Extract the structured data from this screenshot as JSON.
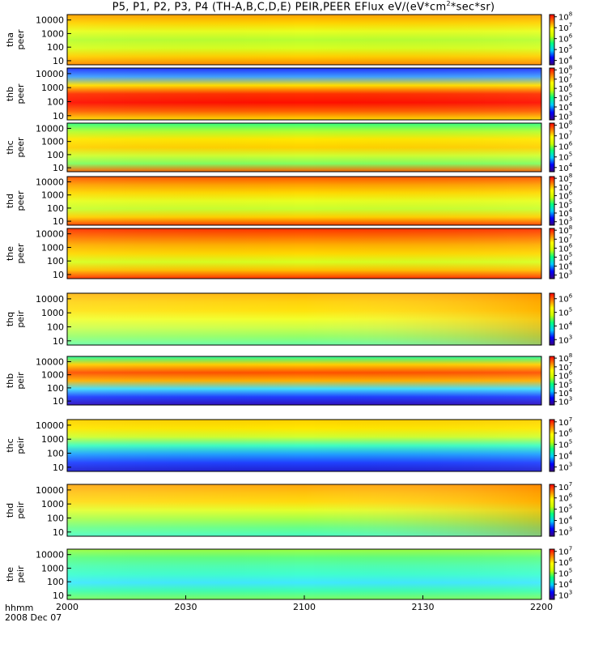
{
  "title": {
    "prefix": "P5, P1, P2, P3, P4 (TH-A,B,C,D,E) PEIR,PEER EFlux eV/(eV*cm",
    "sup": "2",
    "suffix": "*sec*sr)"
  },
  "footer": {
    "time_label": "hhmm",
    "date_label": "2008 Dec 07"
  },
  "colors": {
    "background": "#ffffff",
    "frame": "#000000",
    "colormap": [
      "#3a0080",
      "#0000ff",
      "#00c8ff",
      "#00ff80",
      "#c8ff00",
      "#ffff00",
      "#ff8000",
      "#ff0000"
    ]
  },
  "chart_data": {
    "type": "heatmap",
    "title": "P5, P1, P2, P3, P4 (TH-A,B,C,D,E) PEIR,PEER EFlux eV/(eV*cm2*sec*sr)",
    "x_axis": {
      "ticks": [
        "2000",
        "2030",
        "2100",
        "2130",
        "2200"
      ],
      "range": [
        "2000",
        "2200"
      ],
      "date": "2008 Dec 07"
    },
    "y_axis": {
      "scale": "log",
      "ticks": [
        "10",
        "100",
        "1000",
        "10000"
      ],
      "range": [
        5,
        25000
      ]
    },
    "panels": [
      {
        "label": [
          "tha",
          "peer"
        ],
        "cbar": {
          "min_exp": 3.6,
          "max_exp": 8.2,
          "ticks": [
            4,
            5,
            6,
            7,
            8
          ]
        }
      },
      {
        "label": [
          "thb",
          "peer"
        ],
        "cbar": {
          "min_exp": 2.6,
          "max_exp": 8.2,
          "ticks": [
            3,
            4,
            5,
            6,
            7,
            8
          ]
        }
      },
      {
        "label": [
          "thc",
          "peer"
        ],
        "cbar": {
          "min_exp": 3.6,
          "max_exp": 8.2,
          "ticks": [
            4,
            5,
            6,
            7,
            8
          ]
        }
      },
      {
        "label": [
          "thd",
          "peer"
        ],
        "cbar": {
          "min_exp": 2.6,
          "max_exp": 8.2,
          "ticks": [
            3,
            4,
            5,
            6,
            7,
            8
          ]
        }
      },
      {
        "label": [
          "the",
          "peer"
        ],
        "cbar": {
          "min_exp": 2.6,
          "max_exp": 8.2,
          "ticks": [
            3,
            4,
            5,
            6,
            7,
            8
          ]
        }
      },
      {
        "label": [
          "thq",
          "peir"
        ],
        "cbar": {
          "min_exp": 2.6,
          "max_exp": 6.4,
          "ticks": [
            3,
            4,
            5,
            6
          ]
        }
      },
      {
        "label": [
          "thb",
          "peir"
        ],
        "cbar": {
          "min_exp": 2.6,
          "max_exp": 8.2,
          "ticks": [
            3,
            4,
            5,
            6,
            7,
            8
          ]
        }
      },
      {
        "label": [
          "thc",
          "peir"
        ],
        "cbar": {
          "min_exp": 2.6,
          "max_exp": 7.2,
          "ticks": [
            3,
            4,
            5,
            6,
            7
          ]
        }
      },
      {
        "label": [
          "thd",
          "peir"
        ],
        "cbar": {
          "min_exp": 2.6,
          "max_exp": 7.2,
          "ticks": [
            3,
            4,
            5,
            6,
            7
          ]
        }
      },
      {
        "label": [
          "the",
          "peir"
        ],
        "cbar": {
          "min_exp": 2.6,
          "max_exp": 7.2,
          "ticks": [
            3,
            4,
            5,
            6,
            7
          ]
        }
      }
    ]
  }
}
